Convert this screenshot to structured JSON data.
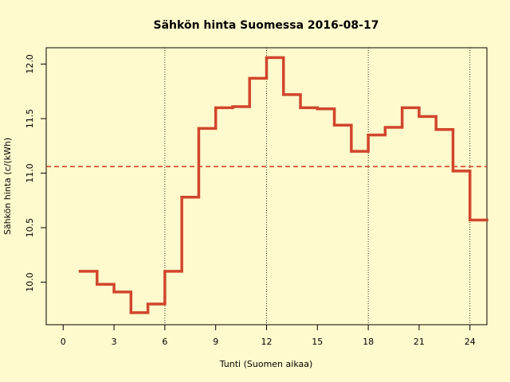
{
  "chart_data": {
    "type": "step",
    "title": "Sähkön hinta Suomessa 2016-08-17",
    "x_label": "Tunti (Suomen aikaa)",
    "y_label": "Sähkön hinta (c/(kWh)",
    "x": [
      1,
      2,
      3,
      4,
      5,
      6,
      7,
      8,
      9,
      10,
      11,
      12,
      13,
      14,
      15,
      16,
      17,
      18,
      19,
      20,
      21,
      22,
      23,
      24
    ],
    "values": [
      10.1,
      9.98,
      9.91,
      9.72,
      9.8,
      10.1,
      10.78,
      11.41,
      11.6,
      11.61,
      11.87,
      12.06,
      11.72,
      11.6,
      11.59,
      11.44,
      11.2,
      11.35,
      11.42,
      11.6,
      11.52,
      11.4,
      11.02,
      10.57
    ],
    "color": "#d0462c",
    "mean_line": 11.06,
    "vlines": [
      6,
      12,
      18,
      24
    ],
    "xlim": [
      -1,
      25
    ],
    "ylim": [
      9.61,
      12.15
    ],
    "xticks": [
      0,
      3,
      6,
      9,
      12,
      15,
      18,
      21,
      24
    ],
    "yticks": [
      {
        "value": 10.0,
        "label": "10.0"
      },
      10.5,
      {
        "value": 11.0,
        "label": "11.0"
      },
      11.5,
      {
        "value": 12.0,
        "label": "12.0"
      }
    ]
  }
}
